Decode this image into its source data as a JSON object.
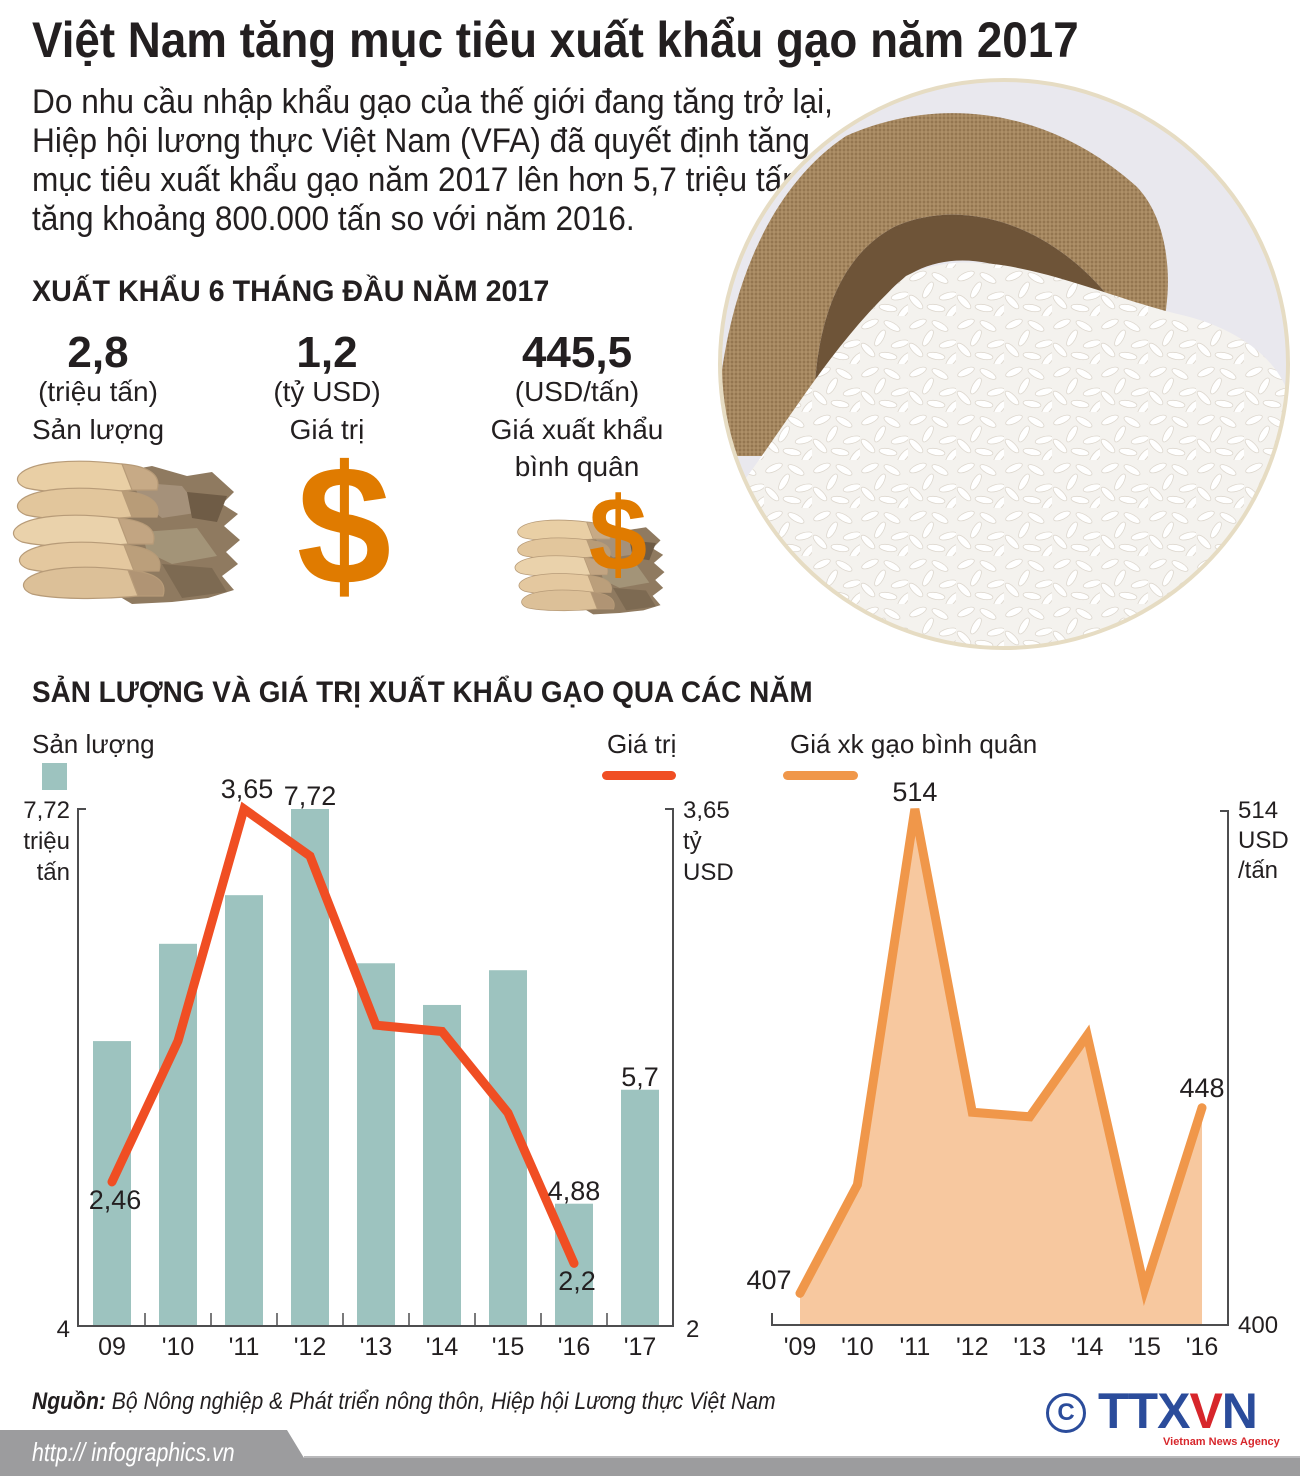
{
  "title": "Việt Nam tăng mục tiêu xuất khẩu gạo năm 2017",
  "intro_lines": [
    "Do nhu cầu nhập khẩu gạo của thế giới đang tăng trở lại,",
    "Hiệp hội lương thực Việt Nam (VFA) đã quyết định tăng",
    "mục tiêu xuất khẩu gạo năm 2017 lên hơn 5,7 triệu tấn,",
    "tăng khoảng 800.000 tấn so với năm 2016."
  ],
  "summary": {
    "heading": "XUẤT KHẨU 6 THÁNG ĐẦU NĂM 2017",
    "dollar_glyph": "$",
    "stats": [
      {
        "value": "2,8",
        "unit": "(triệu tấn)",
        "label_lines": [
          "Sản lượng"
        ],
        "icon": "rice-sacks-icon"
      },
      {
        "value": "1,2",
        "unit": "(tỷ USD)",
        "label_lines": [
          "Giá trị"
        ],
        "icon": "dollar-icon"
      },
      {
        "value": "445,5",
        "unit": "(USD/tấn)",
        "label_lines": [
          "Giá xuất khẩu",
          "bình quân"
        ],
        "icon": "sacks-with-dollar-icon"
      }
    ]
  },
  "photo": {
    "icon": "rice-sack-photo"
  },
  "charts_heading": "SẢN LƯỢNG VÀ GIÁ TRỊ XUẤT KHẨU GẠO QUA CÁC NĂM",
  "chart_data": [
    {
      "type": "bar+line",
      "title": "SẢN LƯỢNG VÀ GIÁ TRỊ XUẤT KHẨU GẠO QUA CÁC NĂM",
      "categories": [
        "09",
        "'10",
        "'11",
        "'12",
        "'13",
        "'14",
        "'15",
        "'16",
        "'17"
      ],
      "series": [
        {
          "name": "Sản lượng",
          "type": "bar",
          "axis": "left",
          "unit": "triệu tấn",
          "values": [
            6.05,
            6.75,
            7.1,
            7.72,
            6.61,
            6.31,
            6.56,
            4.88,
            5.7
          ],
          "labels": {
            "3": "7,72",
            "7": "4,88",
            "8": "5,7"
          },
          "label_positions": {
            "3": "above",
            "7": "above",
            "8": "above"
          },
          "color": "#9dc3bf"
        },
        {
          "name": "Giá trị",
          "type": "line",
          "axis": "right",
          "unit": "tỷ USD",
          "values": [
            2.46,
            2.91,
            3.65,
            3.5,
            2.96,
            2.94,
            2.68,
            2.2,
            null
          ],
          "labels": {
            "0": "2,46",
            "2": "3,65",
            "7": "2,2"
          },
          "label_positions": {
            "0": "below",
            "2": "above",
            "7": "below"
          },
          "color": "#f04e23"
        }
      ],
      "y_left": {
        "min": 4,
        "max": 7.72,
        "min_label": "4",
        "max_label": "7,72",
        "unit_lines": [
          "triệu",
          "tấn"
        ]
      },
      "y_right": {
        "min": 2,
        "max": 3.65,
        "min_label": "2",
        "max_label": "3,65",
        "unit_lines": [
          "tỷ",
          "USD"
        ]
      },
      "grid": false,
      "legend_position": "top"
    },
    {
      "type": "area",
      "categories": [
        "'09",
        "'10",
        "'11",
        "'12",
        "'13",
        "'14",
        "'15",
        "'16"
      ],
      "series": [
        {
          "name": "Giá xk gạo bình quân",
          "type": "area",
          "axis": "right",
          "unit": "USD/tấn",
          "values": [
            407,
            431,
            514,
            447,
            446,
            464,
            408,
            448
          ],
          "labels": {
            "0": "407",
            "2": "514",
            "7": "448"
          },
          "label_positions": {
            "0": "left",
            "2": "above",
            "7": "above"
          },
          "color": "#f0974a",
          "fill": "#f7c89f"
        }
      ],
      "y_right": {
        "min": 400,
        "max": 514,
        "min_label": "400",
        "max_label": "514",
        "unit_lines": [
          "USD",
          "/tấn"
        ]
      },
      "grid": false,
      "legend_position": "top"
    }
  ],
  "footer": {
    "source_label": "Nguồn:",
    "source_text": " Bộ Nông nghiệp & Phát triển nông thôn, Hiệp hội Lương thực Việt Nam",
    "website": "http:// infographics.vn",
    "copyright_symbol": "C",
    "logo_parts": [
      "TTX",
      "V",
      "N"
    ],
    "logo_subtitle": "Vietnam News Agency"
  },
  "colors": {
    "text": "#231f20",
    "bar": "#9dc3bf",
    "value_line": "#f04e23",
    "price_line": "#f0974a",
    "price_fill": "#f7c89f",
    "footer_bar": "#9c9c9e",
    "logo_blue": "#2b4c9b",
    "logo_red": "#d7262b"
  }
}
